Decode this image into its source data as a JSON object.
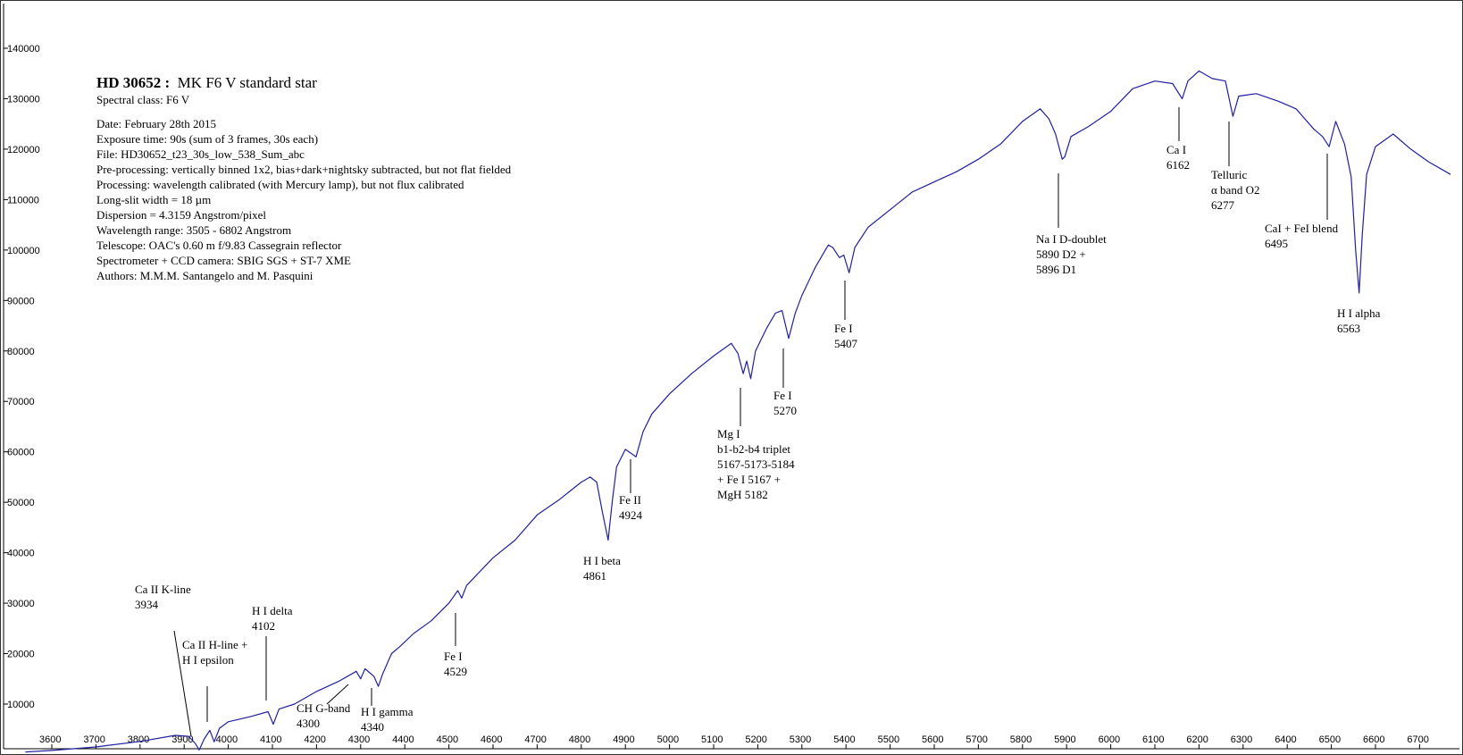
{
  "info": {
    "star": "HD 30652 :",
    "subtitle": "MK F6 V standard star",
    "lines": [
      "Spectral class: F6 V",
      "",
      "Date: February 28th 2015",
      "Exposure time: 90s  (sum of 3 frames, 30s each)",
      "File: HD30652_t23_30s_low_538_Sum_abc",
      "Pre-processing: vertically binned 1x2, bias+dark+nightsky subtracted, but not flat fielded",
      "Processing: wavelength calibrated (with Mercury lamp), but not flux calibrated",
      "Long-slit width = 18 µm",
      "Dispersion = 4.3159 Angstrom/pixel",
      "Wavelength range: 3505 - 6802 Angstrom",
      "Telescope: OAC's 0.60 m f/9.83 Cassegrain reflector",
      "Spectrometer + CCD camera: SBIG SGS + ST-7 XME",
      "Authors: M.M.M. Santangelo and M. Pasquini"
    ]
  },
  "chart_data": {
    "type": "line",
    "title": "",
    "xlabel": "",
    "ylabel": "",
    "xlim": [
      3540,
      6770
    ],
    "ylim": [
      0,
      150000
    ],
    "grid": false,
    "color": "#2020a0",
    "x_ticks": [
      3600,
      3700,
      3800,
      3900,
      4000,
      4100,
      4200,
      4300,
      4400,
      4500,
      4600,
      4700,
      4800,
      4900,
      5000,
      5100,
      5200,
      5300,
      5400,
      5500,
      5600,
      5700,
      5800,
      5900,
      6000,
      6100,
      6200,
      6300,
      6400,
      6500,
      6600,
      6700
    ],
    "y_ticks": [
      10000,
      20000,
      30000,
      40000,
      50000,
      60000,
      70000,
      80000,
      90000,
      100000,
      110000,
      120000,
      130000,
      140000
    ],
    "series": [
      {
        "points": [
          [
            3540,
            500
          ],
          [
            3600,
            800
          ],
          [
            3700,
            1500
          ],
          [
            3800,
            2600
          ],
          [
            3880,
            3800
          ],
          [
            3910,
            3600
          ],
          [
            3925,
            2200
          ],
          [
            3934,
            900
          ],
          [
            3945,
            3000
          ],
          [
            3958,
            4800
          ],
          [
            3968,
            2500
          ],
          [
            3980,
            5200
          ],
          [
            4000,
            6500
          ],
          [
            4050,
            7500
          ],
          [
            4090,
            8500
          ],
          [
            4102,
            6000
          ],
          [
            4115,
            9000
          ],
          [
            4150,
            10000
          ],
          [
            4200,
            12500
          ],
          [
            4250,
            14500
          ],
          [
            4290,
            16500
          ],
          [
            4300,
            15000
          ],
          [
            4310,
            17000
          ],
          [
            4330,
            15500
          ],
          [
            4340,
            13500
          ],
          [
            4350,
            16000
          ],
          [
            4370,
            20000
          ],
          [
            4390,
            21500
          ],
          [
            4420,
            24000
          ],
          [
            4460,
            26500
          ],
          [
            4500,
            30000
          ],
          [
            4520,
            32500
          ],
          [
            4529,
            31000
          ],
          [
            4540,
            33500
          ],
          [
            4600,
            39000
          ],
          [
            4650,
            42500
          ],
          [
            4700,
            47500
          ],
          [
            4750,
            50500
          ],
          [
            4800,
            54000
          ],
          [
            4820,
            55000
          ],
          [
            4835,
            54000
          ],
          [
            4848,
            48000
          ],
          [
            4861,
            42500
          ],
          [
            4870,
            50000
          ],
          [
            4880,
            57000
          ],
          [
            4900,
            60500
          ],
          [
            4924,
            59000
          ],
          [
            4940,
            64000
          ],
          [
            4960,
            67500
          ],
          [
            5000,
            71500
          ],
          [
            5050,
            75500
          ],
          [
            5100,
            79000
          ],
          [
            5140,
            81500
          ],
          [
            5155,
            79500
          ],
          [
            5167,
            75500
          ],
          [
            5175,
            78000
          ],
          [
            5184,
            74500
          ],
          [
            5195,
            80000
          ],
          [
            5220,
            84500
          ],
          [
            5240,
            87500
          ],
          [
            5255,
            88000
          ],
          [
            5270,
            82500
          ],
          [
            5285,
            87500
          ],
          [
            5300,
            91000
          ],
          [
            5330,
            96500
          ],
          [
            5360,
            101000
          ],
          [
            5370,
            100500
          ],
          [
            5385,
            98500
          ],
          [
            5395,
            99000
          ],
          [
            5407,
            95500
          ],
          [
            5420,
            100500
          ],
          [
            5450,
            104500
          ],
          [
            5500,
            108000
          ],
          [
            5550,
            111500
          ],
          [
            5600,
            113500
          ],
          [
            5650,
            115500
          ],
          [
            5700,
            118000
          ],
          [
            5750,
            121000
          ],
          [
            5800,
            125500
          ],
          [
            5840,
            128000
          ],
          [
            5860,
            126000
          ],
          [
            5875,
            123000
          ],
          [
            5890,
            118000
          ],
          [
            5896,
            118500
          ],
          [
            5910,
            122500
          ],
          [
            5950,
            124500
          ],
          [
            6000,
            127500
          ],
          [
            6050,
            132000
          ],
          [
            6100,
            133500
          ],
          [
            6140,
            133000
          ],
          [
            6162,
            130000
          ],
          [
            6175,
            133500
          ],
          [
            6200,
            135500
          ],
          [
            6230,
            134000
          ],
          [
            6260,
            133500
          ],
          [
            6277,
            126500
          ],
          [
            6290,
            130500
          ],
          [
            6330,
            131000
          ],
          [
            6380,
            129500
          ],
          [
            6420,
            128000
          ],
          [
            6460,
            124000
          ],
          [
            6480,
            122500
          ],
          [
            6495,
            120500
          ],
          [
            6510,
            125500
          ],
          [
            6530,
            121000
          ],
          [
            6545,
            114500
          ],
          [
            6555,
            100000
          ],
          [
            6563,
            91500
          ],
          [
            6570,
            103000
          ],
          [
            6580,
            115000
          ],
          [
            6600,
            120500
          ],
          [
            6640,
            123000
          ],
          [
            6680,
            120000
          ],
          [
            6720,
            117500
          ],
          [
            6770,
            115000
          ]
        ]
      }
    ],
    "annotations": [
      {
        "lines": [
          "Ca II K-line",
          "3934"
        ],
        "wl": 3934,
        "anchor": "label-left"
      },
      {
        "lines": [
          "Ca II H-line +",
          "H I epsilon"
        ],
        "wl": 3968
      },
      {
        "lines": [
          "H I delta",
          "4102"
        ],
        "wl": 4102
      },
      {
        "lines": [
          "CH G-band",
          "4300"
        ],
        "wl": 4300
      },
      {
        "lines": [
          "H I gamma",
          "4340"
        ],
        "wl": 4340
      },
      {
        "lines": [
          "Fe I",
          "4529"
        ],
        "wl": 4529
      },
      {
        "lines": [
          "H I beta",
          "4861"
        ],
        "wl": 4861
      },
      {
        "lines": [
          "Fe II",
          "4924"
        ],
        "wl": 4924
      },
      {
        "lines": [
          "Mg I",
          "b1-b2-b4 triplet",
          "5167-5173-5184",
          "+ Fe I 5167 +",
          "MgH 5182"
        ],
        "wl": 5175
      },
      {
        "lines": [
          "Fe I",
          "5270"
        ],
        "wl": 5270
      },
      {
        "lines": [
          "Fe I",
          "5407"
        ],
        "wl": 5407
      },
      {
        "lines": [
          "Na I D-doublet",
          "5890 D2 +",
          "5896 D1"
        ],
        "wl": 5893
      },
      {
        "lines": [
          "Ca I",
          "6162"
        ],
        "wl": 6162
      },
      {
        "lines": [
          "Telluric",
          "α band O2",
          "6277"
        ],
        "wl": 6277
      },
      {
        "lines": [
          "CaI + FeI blend",
          "6495"
        ],
        "wl": 6495
      },
      {
        "lines": [
          "H I alpha",
          "6563"
        ],
        "wl": 6563
      }
    ]
  }
}
